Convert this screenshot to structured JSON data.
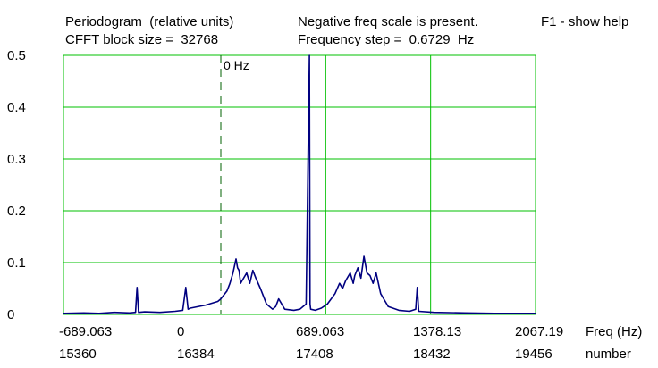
{
  "header": {
    "line1_left": "Periodogram  (relative units)",
    "line2_left": "CFFT block size =  32768",
    "line1_mid": "Negative freq scale is present.",
    "line2_mid": "Frequency step =  0.6729  Hz",
    "help": "F1 - show help"
  },
  "zero_marker_label": "0 Hz",
  "colors": {
    "grid": "#00c000",
    "trace": "#000080",
    "background": "#ffffff",
    "text": "#000000"
  },
  "chart_data": {
    "type": "line",
    "title": "Periodogram  (relative units)",
    "ylabel": "",
    "ylim": [
      0,
      0.5
    ],
    "y_ticks": [
      "0.5",
      "0.4",
      "0.3",
      "0.2",
      "0.1",
      "0"
    ],
    "x_freq_ticks": [
      "-689.063",
      "0",
      "689.063",
      "1378.13",
      "2067.19"
    ],
    "x_number_ticks": [
      "15360",
      "16384",
      "17408",
      "18432",
      "19456"
    ],
    "x_freq_label": "Freq (Hz)",
    "x_number_label": "number",
    "xlim_hz": [
      -1033.6,
      2067.19
    ],
    "grid": true,
    "zero_line_hz": 0,
    "series": [
      {
        "x_hz": [
          -1033.6,
          -900,
          -800,
          -700,
          -600,
          -560,
          -550,
          -540,
          -500,
          -400,
          -300,
          -250,
          -230,
          -215,
          -200,
          -100,
          -20,
          0,
          40,
          60,
          80,
          100,
          110,
          120,
          130,
          150,
          170,
          190,
          210,
          230,
          260,
          280,
          300,
          320,
          340,
          360,
          380,
          420,
          480,
          520,
          560,
          582,
          586,
          590,
          620,
          660,
          700,
          750,
          780,
          800,
          820,
          850,
          870,
          880,
          900,
          920,
          940,
          960,
          980,
          1000,
          1020,
          1050,
          1080,
          1100,
          1130,
          1170,
          1240,
          1280,
          1290,
          1300,
          1400,
          1600,
          1800,
          2067.19
        ],
        "y": [
          0.002,
          0.003,
          0.002,
          0.004,
          0.003,
          0.004,
          0.052,
          0.004,
          0.005,
          0.004,
          0.006,
          0.008,
          0.052,
          0.01,
          0.012,
          0.018,
          0.025,
          0.03,
          0.045,
          0.06,
          0.08,
          0.107,
          0.09,
          0.085,
          0.06,
          0.07,
          0.08,
          0.06,
          0.085,
          0.07,
          0.05,
          0.035,
          0.02,
          0.015,
          0.01,
          0.015,
          0.03,
          0.01,
          0.008,
          0.01,
          0.02,
          0.5,
          0.02,
          0.01,
          0.008,
          0.012,
          0.02,
          0.04,
          0.06,
          0.05,
          0.065,
          0.08,
          0.06,
          0.075,
          0.09,
          0.07,
          0.112,
          0.08,
          0.075,
          0.06,
          0.08,
          0.04,
          0.025,
          0.015,
          0.012,
          0.008,
          0.006,
          0.01,
          0.052,
          0.006,
          0.004,
          0.003,
          0.002,
          0.002
        ]
      }
    ]
  }
}
